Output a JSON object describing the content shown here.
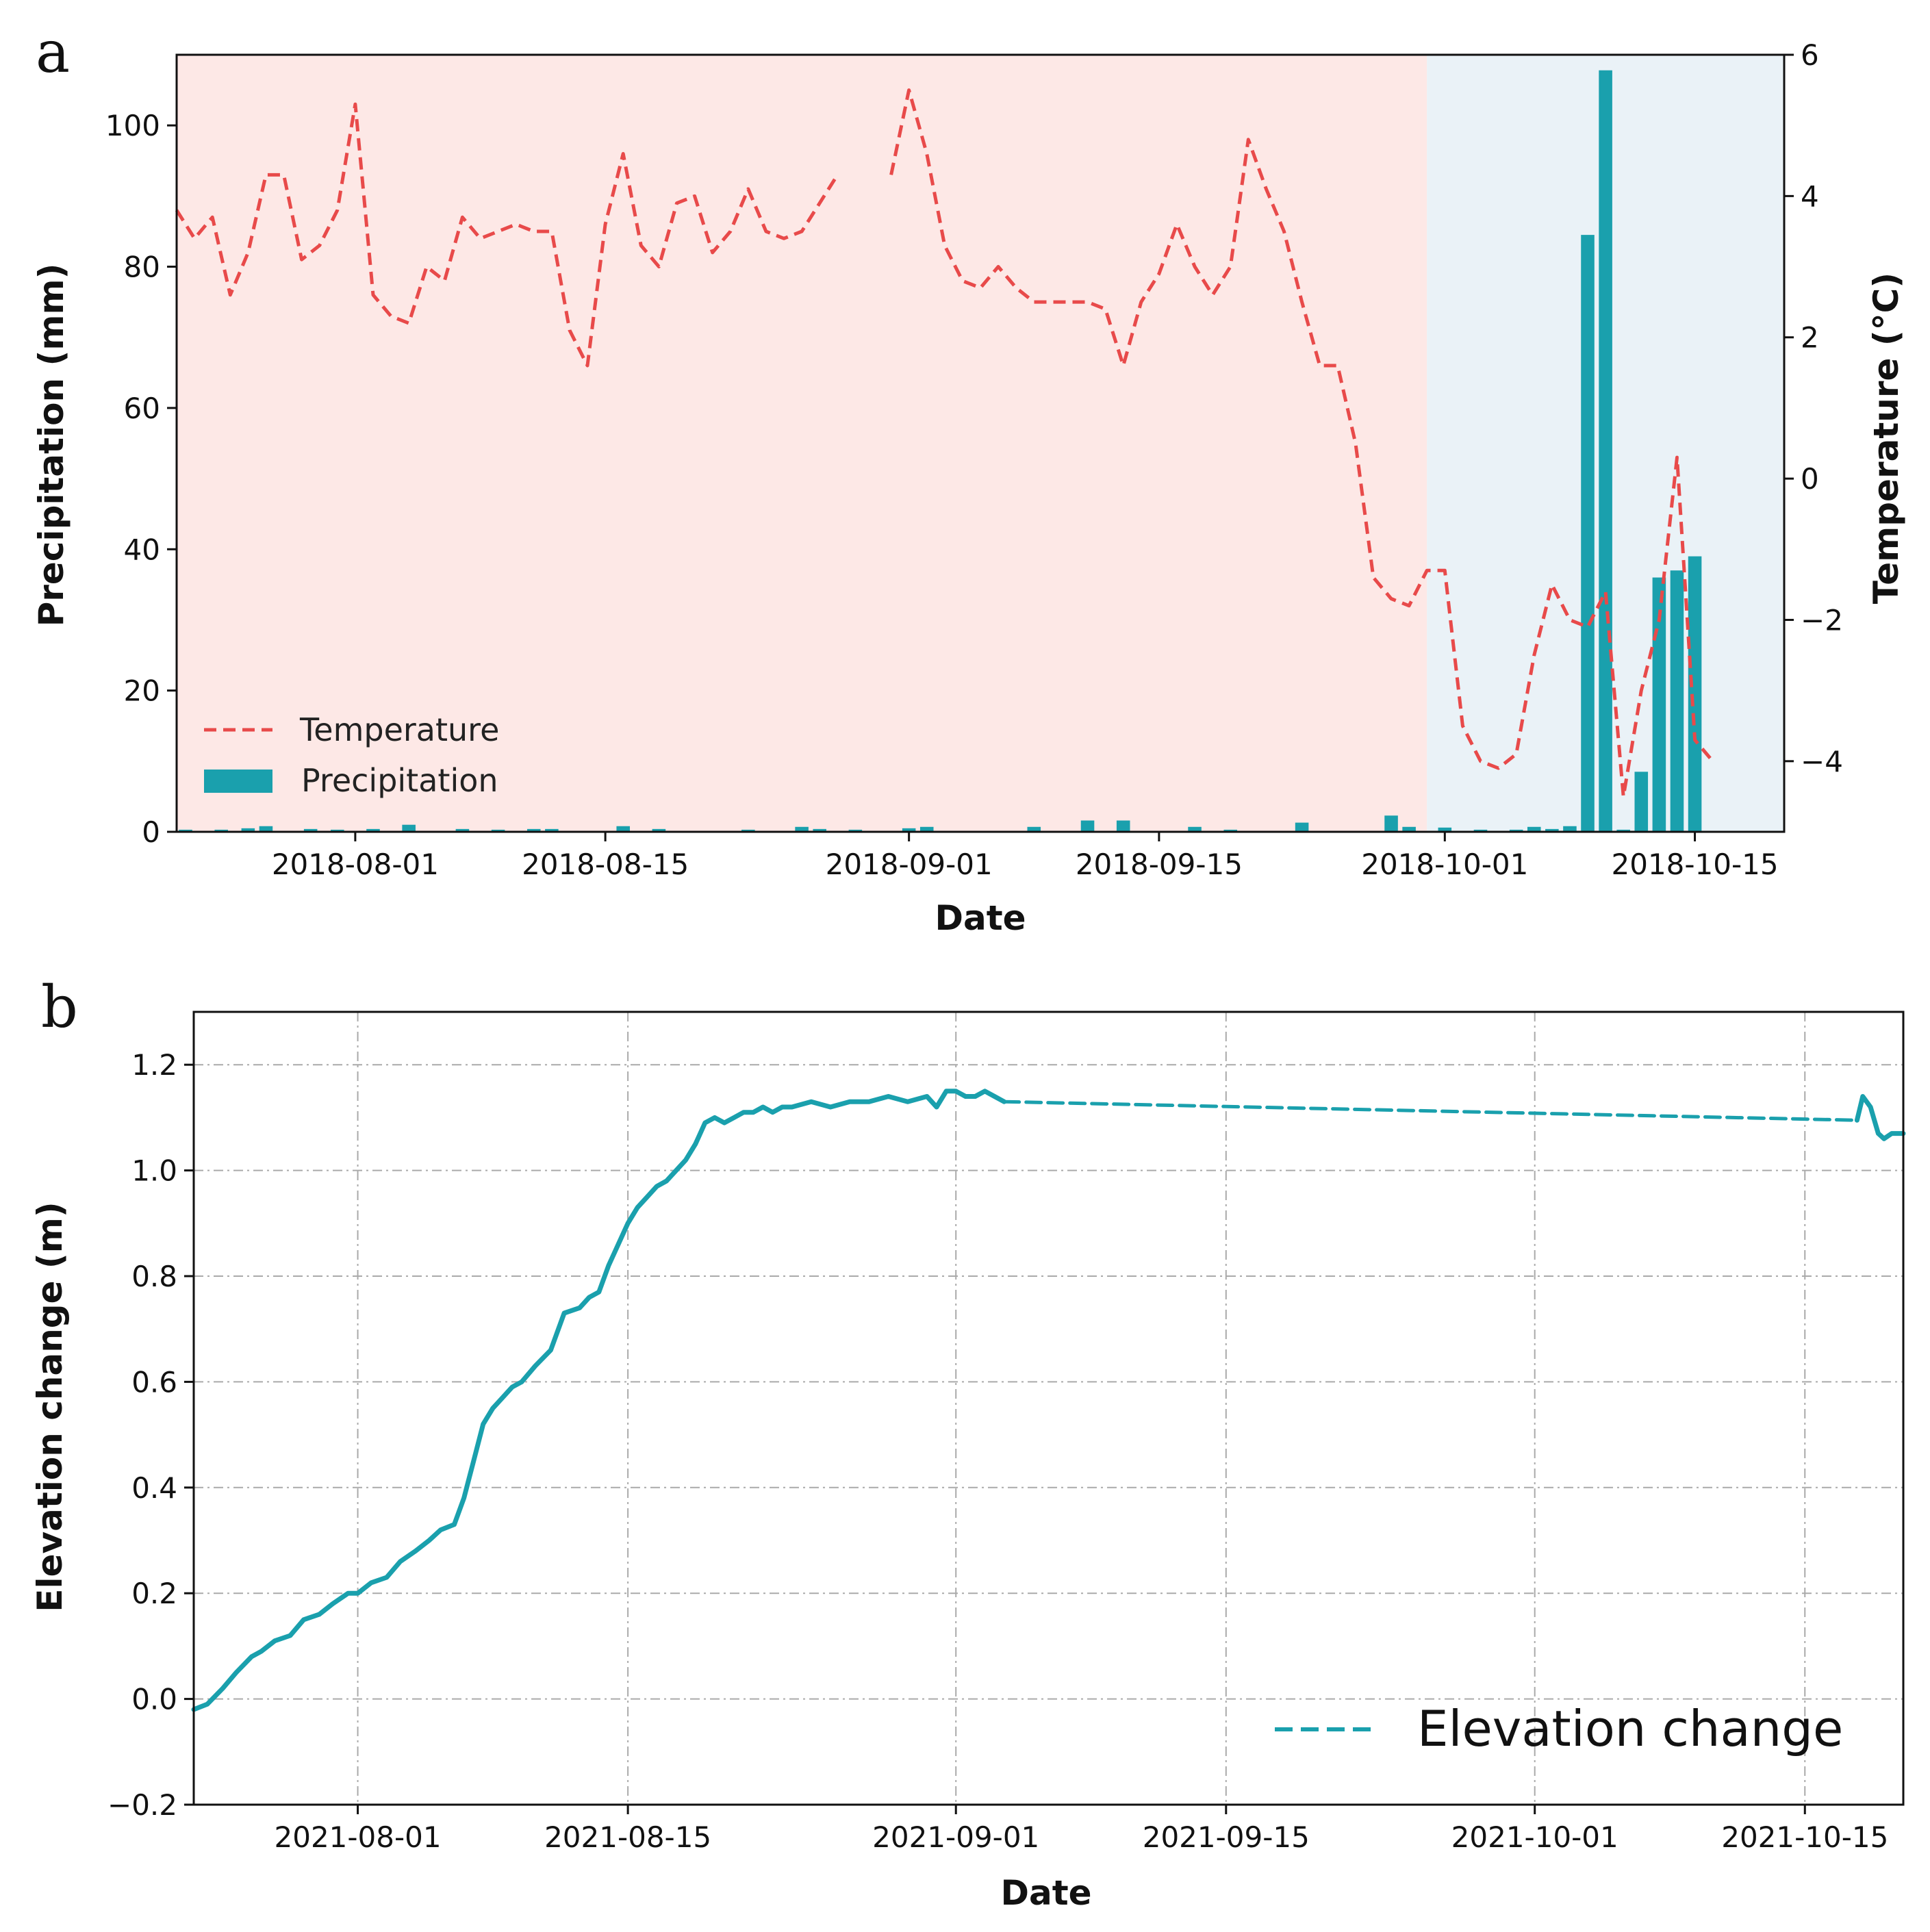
{
  "chart_data": [
    {
      "panel": "a",
      "type": "bar+line",
      "title": "",
      "xlabel": "Date",
      "ylabel_left": "Precipitation (mm)",
      "ylabel_right": "Temperature (°C)",
      "x_tick_labels": [
        "2018-08-01",
        "2018-08-15",
        "2018-09-01",
        "2018-09-15",
        "2018-10-01",
        "2018-10-15"
      ],
      "x_tick_days": [
        10,
        24,
        41,
        55,
        71,
        85
      ],
      "xlim_days": [
        0,
        90
      ],
      "ylim_left": [
        0,
        110
      ],
      "y_ticks_left": [
        0,
        20,
        40,
        60,
        80,
        100
      ],
      "ylim_right": [
        -5,
        6
      ],
      "y_ticks_right": [
        -4,
        -2,
        0,
        2,
        4,
        6
      ],
      "y_tick_labels_right": [
        "−4",
        "−2",
        "0",
        "2",
        "4",
        "6"
      ],
      "shaded_regions": [
        {
          "from_day": 0,
          "to_day": 70,
          "color": "#fde8e6"
        },
        {
          "from_day": 70,
          "to_day": 90,
          "color": "#eaf2f7"
        }
      ],
      "legend": [
        "Temperature",
        "Precipitation"
      ],
      "colors": {
        "temperature": "#e84a4a",
        "precipitation": "#1aa0ad"
      },
      "series": [
        {
          "name": "Precipitation",
          "kind": "bar",
          "unit": "mm",
          "days": [
            0.5,
            2.5,
            4,
            5,
            7.5,
            9,
            11,
            13,
            16,
            18,
            20,
            21,
            25,
            27,
            32,
            35,
            36,
            38,
            41,
            42,
            48,
            51,
            53,
            57,
            59,
            63,
            68,
            69,
            71,
            73,
            75,
            76,
            77,
            78,
            79,
            80,
            81,
            82,
            83,
            84,
            85
          ],
          "values": [
            0.3,
            0.3,
            0.5,
            0.8,
            0.4,
            0.3,
            0.4,
            1.0,
            0.4,
            0.3,
            0.4,
            0.4,
            0.8,
            0.4,
            0.3,
            0.7,
            0.4,
            0.3,
            0.5,
            0.7,
            0.7,
            1.6,
            1.6,
            0.7,
            0.3,
            1.3,
            2.3,
            0.7,
            0.6,
            0.3,
            0.3,
            0.7,
            0.4,
            0.8,
            84.5,
            107.8,
            0.3,
            8.5,
            36.0,
            37.0,
            39.0
          ]
        },
        {
          "name": "Temperature",
          "kind": "line",
          "style": "dashed",
          "unit": "°C",
          "segments": [
            {
              "days": [
                0,
                1,
                2,
                3,
                4,
                5,
                6,
                7,
                8,
                9,
                10,
                11,
                12,
                13,
                14,
                15,
                16,
                17,
                18,
                19,
                20,
                21,
                22,
                23,
                24,
                25,
                26,
                27,
                28,
                29,
                30,
                31,
                32,
                33,
                34,
                35,
                36,
                37,
                38,
                39,
                40,
                41,
                42,
                43
              ],
              "values": [
                3.8,
                3.4,
                3.7,
                2.6,
                3.2,
                4.3,
                4.3,
                3.1,
                3.3,
                3.8,
                5.3,
                2.6,
                2.3,
                2.2,
                3.0,
                2.8,
                3.7,
                3.4,
                3.5,
                3.6,
                3.5,
                3.5,
                2.1,
                1.6,
                3.6,
                4.6,
                3.3,
                3.0,
                3.9,
                4.0,
                3.2,
                3.5,
                4.1,
                3.5,
                3.4,
                3.5,
                3.9,
                4.3,
                null,
                null,
                null,
                null,
                null,
                null
              ]
            }
          ],
          "days": [
            0,
            1,
            2,
            3,
            4,
            5,
            6,
            7,
            8,
            9,
            10,
            11,
            12,
            13,
            14,
            15,
            16,
            17,
            18,
            19,
            20,
            21,
            22,
            23,
            24,
            25,
            26,
            27,
            28,
            29,
            30,
            31,
            32,
            33,
            34,
            35,
            36,
            37,
            38,
            39,
            40,
            41,
            42,
            43,
            44,
            45,
            46,
            47,
            48,
            49,
            50,
            51,
            52,
            53,
            54,
            55,
            56,
            57,
            58,
            59,
            60,
            61,
            62,
            63,
            64,
            65,
            66,
            67,
            68,
            69,
            70,
            71,
            72,
            73,
            74,
            75,
            76,
            77,
            78,
            79,
            80,
            81,
            82,
            83,
            84,
            85,
            86,
            87,
            88,
            89,
            90
          ],
          "values": [
            3.8,
            3.4,
            3.7,
            2.6,
            3.2,
            4.3,
            4.3,
            3.1,
            3.3,
            3.8,
            5.3,
            2.6,
            2.3,
            2.2,
            3.0,
            2.8,
            3.7,
            3.4,
            3.5,
            3.6,
            3.5,
            3.5,
            2.1,
            1.6,
            3.6,
            4.6,
            3.3,
            3.0,
            3.9,
            4.0,
            3.2,
            3.5,
            4.1,
            3.5,
            3.4,
            3.5,
            3.9,
            4.3,
            null,
            null,
            4.3,
            5.5,
            4.6,
            3.3,
            2.8,
            2.7,
            3.0,
            2.7,
            2.5,
            2.5,
            2.5,
            2.5,
            2.4,
            1.6,
            2.5,
            2.9,
            3.6,
            3.0,
            2.6,
            3.0,
            4.8,
            4.1,
            3.5,
            2.5,
            1.6,
            1.6,
            0.5,
            -1.4,
            -1.7,
            -1.8,
            -1.3,
            -1.3,
            -3.5,
            -4.0,
            -4.1,
            -3.9,
            -2.5,
            -1.5,
            -2.0,
            -2.1,
            -1.6,
            -4.5,
            -3.0,
            -2.0,
            0.3,
            -3.7,
            -4.0,
            null,
            null,
            null,
            null
          ]
        }
      ]
    },
    {
      "panel": "b",
      "type": "line",
      "title": "",
      "xlabel": "Date",
      "ylabel": "Elevation change (m)",
      "x_tick_labels": [
        "2021-08-01",
        "2021-08-15",
        "2021-09-01",
        "2021-09-15",
        "2021-10-01",
        "2021-10-15"
      ],
      "x_tick_days": [
        8.5,
        22.5,
        39.5,
        53.5,
        69.5,
        83.5
      ],
      "xlim_days": [
        0,
        88.6
      ],
      "ylim": [
        -0.2,
        1.3
      ],
      "y_ticks": [
        -0.2,
        0.0,
        0.2,
        0.4,
        0.6,
        0.8,
        1.0,
        1.2
      ],
      "y_tick_labels": [
        "−0.2",
        "0.0",
        "0.2",
        "0.4",
        "0.6",
        "0.8",
        "1.0",
        "1.2"
      ],
      "grid": true,
      "legend": [
        "Elevation change"
      ],
      "colors": {
        "elevation": "#1aa0ad"
      },
      "series": [
        {
          "name": "Elevation change (measured)",
          "kind": "line",
          "style": "solid",
          "days": [
            0,
            0.7,
            1.5,
            2.2,
            3,
            3.5,
            4.2,
            5,
            5.7,
            6.5,
            7.2,
            8,
            8.5,
            9.2,
            10,
            10.7,
            11.5,
            12.2,
            12.8,
            13.5,
            14,
            14.5,
            15,
            15.5,
            16,
            16.5,
            17,
            17.7,
            18.5,
            19.2,
            20,
            20.5,
            21,
            21.5,
            22,
            22.5,
            23,
            23.5,
            24,
            24.5,
            25,
            25.5,
            26,
            26.5,
            27,
            27.5,
            28,
            28.5,
            29,
            29.5,
            30,
            30.5,
            31,
            32,
            33,
            34,
            35,
            36,
            37,
            38,
            38.5,
            39,
            39.5,
            40,
            40.5,
            41,
            41.5,
            42
          ],
          "values": [
            -0.02,
            -0.01,
            0.02,
            0.05,
            0.08,
            0.09,
            0.11,
            0.12,
            0.15,
            0.16,
            0.18,
            0.2,
            0.2,
            0.22,
            0.23,
            0.26,
            0.28,
            0.3,
            0.32,
            0.33,
            0.38,
            0.45,
            0.52,
            0.55,
            0.57,
            0.59,
            0.6,
            0.63,
            0.66,
            0.73,
            0.74,
            0.76,
            0.77,
            0.82,
            0.86,
            0.9,
            0.93,
            0.95,
            0.97,
            0.98,
            1.0,
            1.02,
            1.05,
            1.09,
            1.1,
            1.09,
            1.1,
            1.11,
            1.11,
            1.12,
            1.11,
            1.12,
            1.12,
            1.13,
            1.12,
            1.13,
            1.13,
            1.14,
            1.13,
            1.14,
            1.12,
            1.15,
            1.15,
            1.14,
            1.14,
            1.15,
            1.14,
            1.13
          ]
        },
        {
          "name": "Elevation change (gap)",
          "kind": "line",
          "style": "dashed",
          "days": [
            42,
            86.2
          ],
          "values": [
            1.13,
            1.095
          ]
        },
        {
          "name": "Elevation change (measured end)",
          "kind": "line",
          "style": "solid",
          "days": [
            86.2,
            86.5,
            86.9,
            87.3,
            87.6,
            88,
            88.6
          ],
          "values": [
            1.095,
            1.14,
            1.12,
            1.07,
            1.06,
            1.07,
            1.07
          ]
        }
      ]
    }
  ]
}
